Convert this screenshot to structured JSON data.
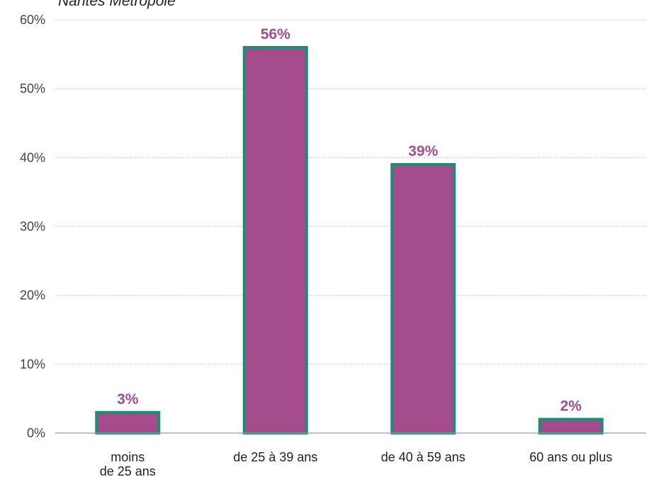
{
  "chart_data": {
    "type": "bar",
    "subtitle": "Nantes Métropole",
    "categories": [
      [
        "moins",
        "de 25 ans"
      ],
      [
        "de 25 à 39 ans"
      ],
      [
        "de 40 à 59 ans"
      ],
      [
        "60 ans ou plus"
      ]
    ],
    "values": [
      3,
      56,
      39,
      2
    ],
    "data_labels": [
      "3%",
      "56%",
      "39%",
      "2%"
    ],
    "ylim": [
      0,
      60
    ],
    "yticks": [
      "0%",
      "10%",
      "20%",
      "30%",
      "40%",
      "50%",
      "60%"
    ],
    "grid": true,
    "colors": {
      "bar_fill": "#a54d8c",
      "bar_border": "#1e8c72",
      "data_label": "#a54d8c"
    }
  }
}
